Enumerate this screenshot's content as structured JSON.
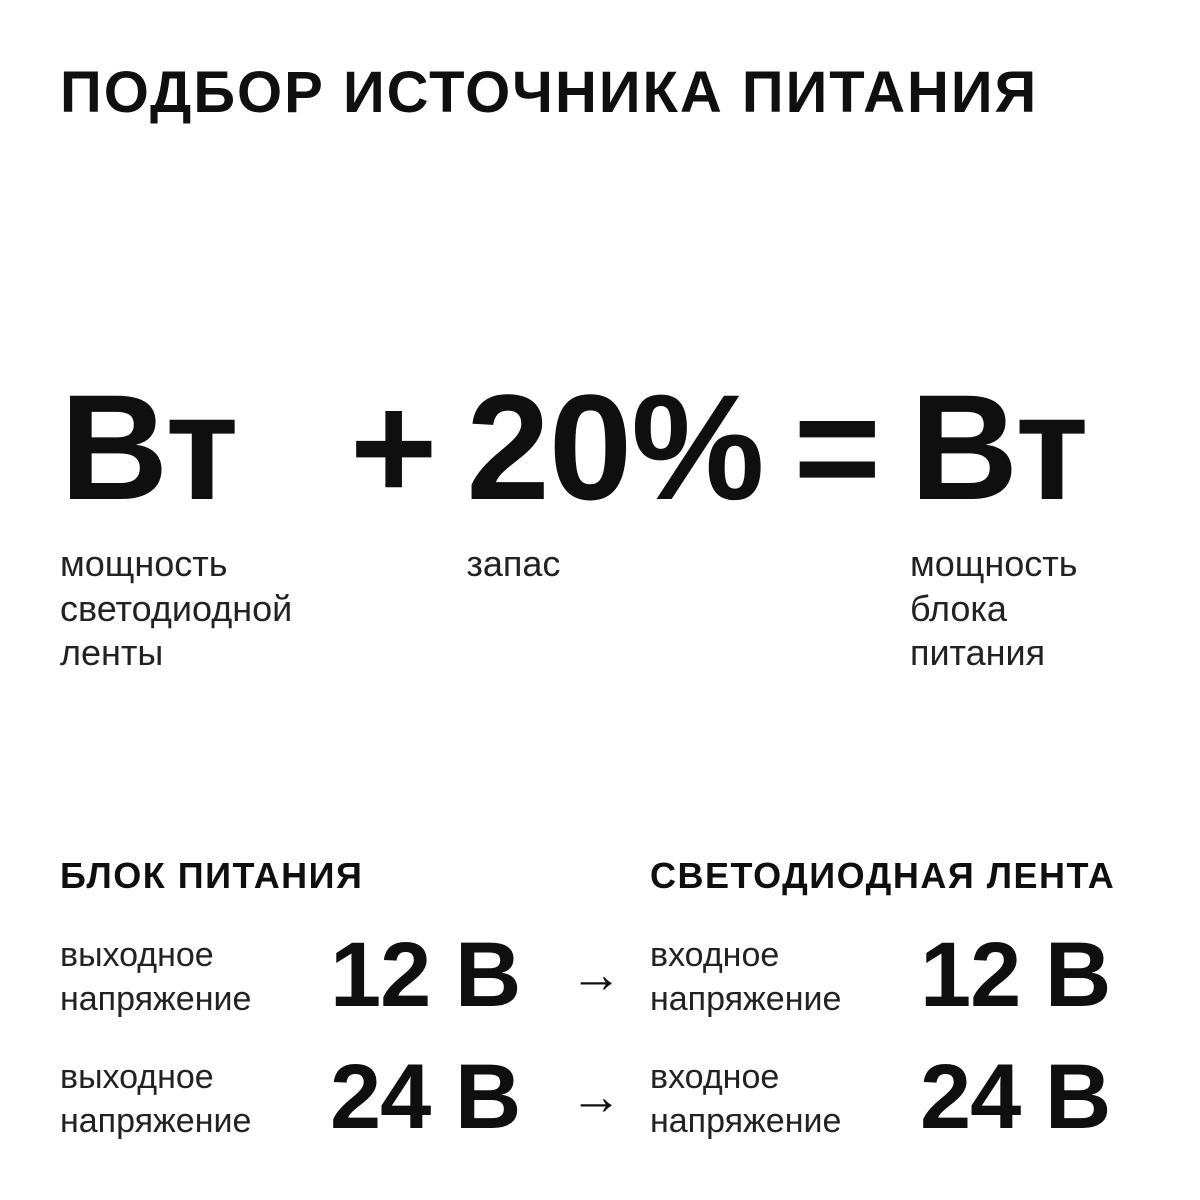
{
  "page": {
    "title": "ПОДБОР ИСТОЧНИКА ПИТАНИЯ",
    "colors": {
      "bg": "#ffffff",
      "ink": "#0f0f0f",
      "label": "#222222"
    }
  },
  "formula": {
    "strip_watts": {
      "value": "Вт",
      "label": "мощность светодиодной ленты"
    },
    "plus": "+",
    "reserve": {
      "value": "20%",
      "label": "запас"
    },
    "equals": "=",
    "psu_watts": {
      "value": "Вт",
      "label": "мощность блока питания"
    }
  },
  "comparison": {
    "arrow": "→",
    "psu": {
      "header": "БЛОК ПИТАНИЯ",
      "rows": [
        {
          "label": "выходное напряжение",
          "value": "12 В"
        },
        {
          "label": "выходное напряжение",
          "value": "24 В"
        }
      ]
    },
    "strip": {
      "header": "СВЕТОДИОДНАЯ ЛЕНТА",
      "rows": [
        {
          "label": "входное напряжение",
          "value": "12 В"
        },
        {
          "label": "входное напряжение",
          "value": "24 В"
        }
      ]
    }
  }
}
